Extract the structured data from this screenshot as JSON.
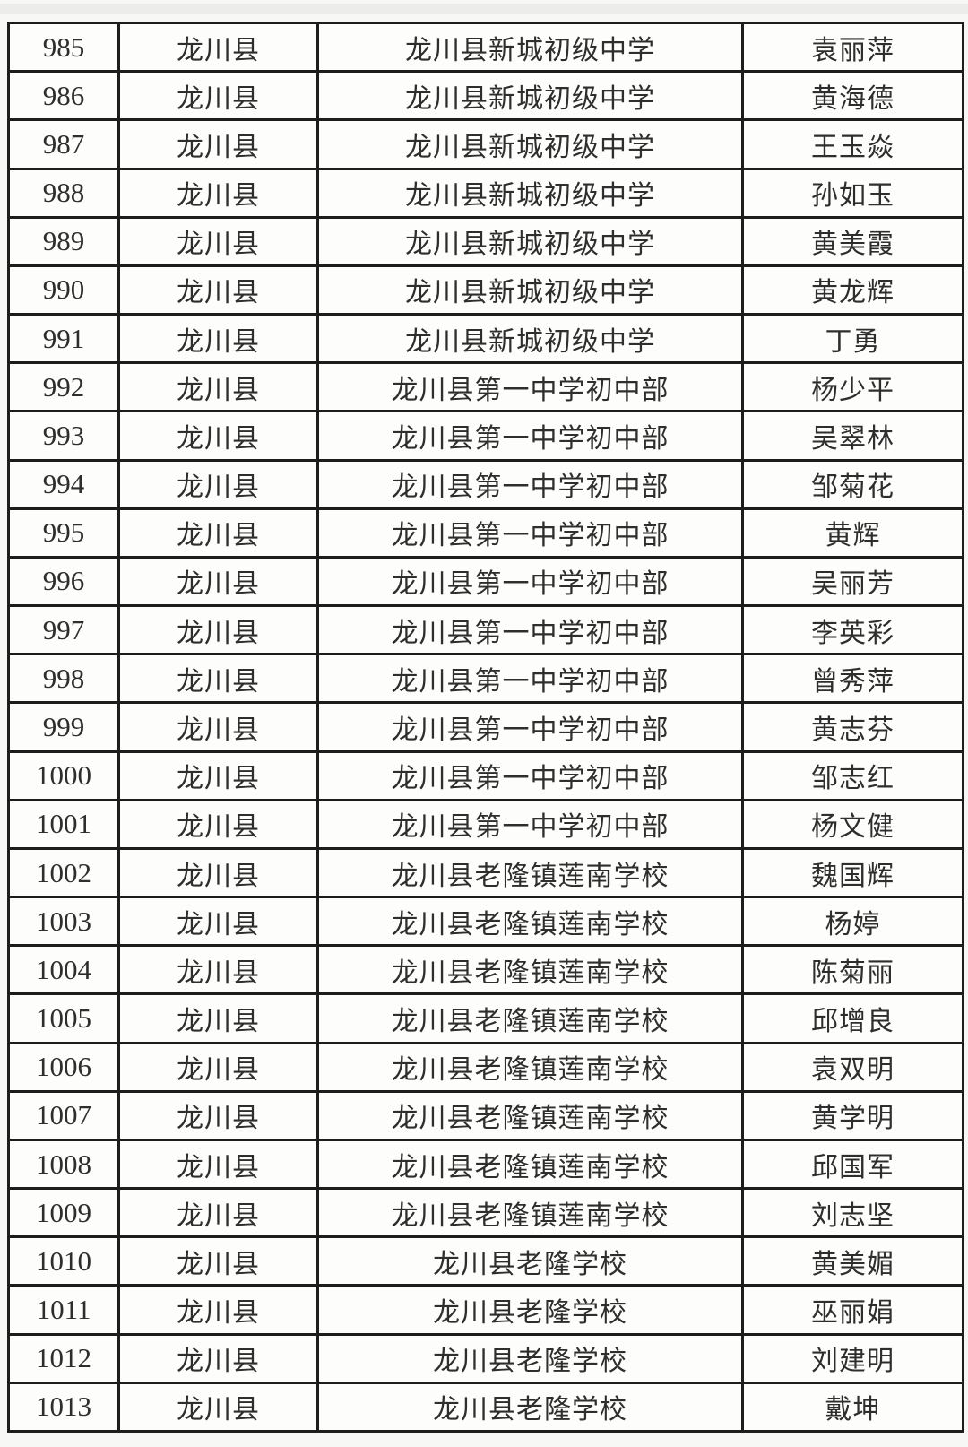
{
  "document": {
    "type": "scanned-roster-table",
    "colors": {
      "page_background": "#f7f7f5",
      "cell_background": "#fdfdfc",
      "border": "#1d1d1d",
      "text": "#2e2e2e"
    }
  },
  "table": {
    "columns": [
      "serial-number",
      "county",
      "school",
      "person-name"
    ],
    "rows": [
      [
        "985",
        "龙川县",
        "龙川县新城初级中学",
        "袁丽萍"
      ],
      [
        "986",
        "龙川县",
        "龙川县新城初级中学",
        "黄海德"
      ],
      [
        "987",
        "龙川县",
        "龙川县新城初级中学",
        "王玉焱"
      ],
      [
        "988",
        "龙川县",
        "龙川县新城初级中学",
        "孙如玉"
      ],
      [
        "989",
        "龙川县",
        "龙川县新城初级中学",
        "黄美霞"
      ],
      [
        "990",
        "龙川县",
        "龙川县新城初级中学",
        "黄龙辉"
      ],
      [
        "991",
        "龙川县",
        "龙川县新城初级中学",
        "丁勇"
      ],
      [
        "992",
        "龙川县",
        "龙川县第一中学初中部",
        "杨少平"
      ],
      [
        "993",
        "龙川县",
        "龙川县第一中学初中部",
        "吴翠林"
      ],
      [
        "994",
        "龙川县",
        "龙川县第一中学初中部",
        "邹菊花"
      ],
      [
        "995",
        "龙川县",
        "龙川县第一中学初中部",
        "黄辉"
      ],
      [
        "996",
        "龙川县",
        "龙川县第一中学初中部",
        "吴丽芳"
      ],
      [
        "997",
        "龙川县",
        "龙川县第一中学初中部",
        "李英彩"
      ],
      [
        "998",
        "龙川县",
        "龙川县第一中学初中部",
        "曾秀萍"
      ],
      [
        "999",
        "龙川县",
        "龙川县第一中学初中部",
        "黄志芬"
      ],
      [
        "1000",
        "龙川县",
        "龙川县第一中学初中部",
        "邹志红"
      ],
      [
        "1001",
        "龙川县",
        "龙川县第一中学初中部",
        "杨文健"
      ],
      [
        "1002",
        "龙川县",
        "龙川县老隆镇莲南学校",
        "魏国辉"
      ],
      [
        "1003",
        "龙川县",
        "龙川县老隆镇莲南学校",
        "杨婷"
      ],
      [
        "1004",
        "龙川县",
        "龙川县老隆镇莲南学校",
        "陈菊丽"
      ],
      [
        "1005",
        "龙川县",
        "龙川县老隆镇莲南学校",
        "邱增良"
      ],
      [
        "1006",
        "龙川县",
        "龙川县老隆镇莲南学校",
        "袁双明"
      ],
      [
        "1007",
        "龙川县",
        "龙川县老隆镇莲南学校",
        "黄学明"
      ],
      [
        "1008",
        "龙川县",
        "龙川县老隆镇莲南学校",
        "邱国军"
      ],
      [
        "1009",
        "龙川县",
        "龙川县老隆镇莲南学校",
        "刘志坚"
      ],
      [
        "1010",
        "龙川县",
        "龙川县老隆学校",
        "黄美媚"
      ],
      [
        "1011",
        "龙川县",
        "龙川县老隆学校",
        "巫丽娟"
      ],
      [
        "1012",
        "龙川县",
        "龙川县老隆学校",
        "刘建明"
      ],
      [
        "1013",
        "龙川县",
        "龙川县老隆学校",
        "戴坤"
      ]
    ]
  }
}
